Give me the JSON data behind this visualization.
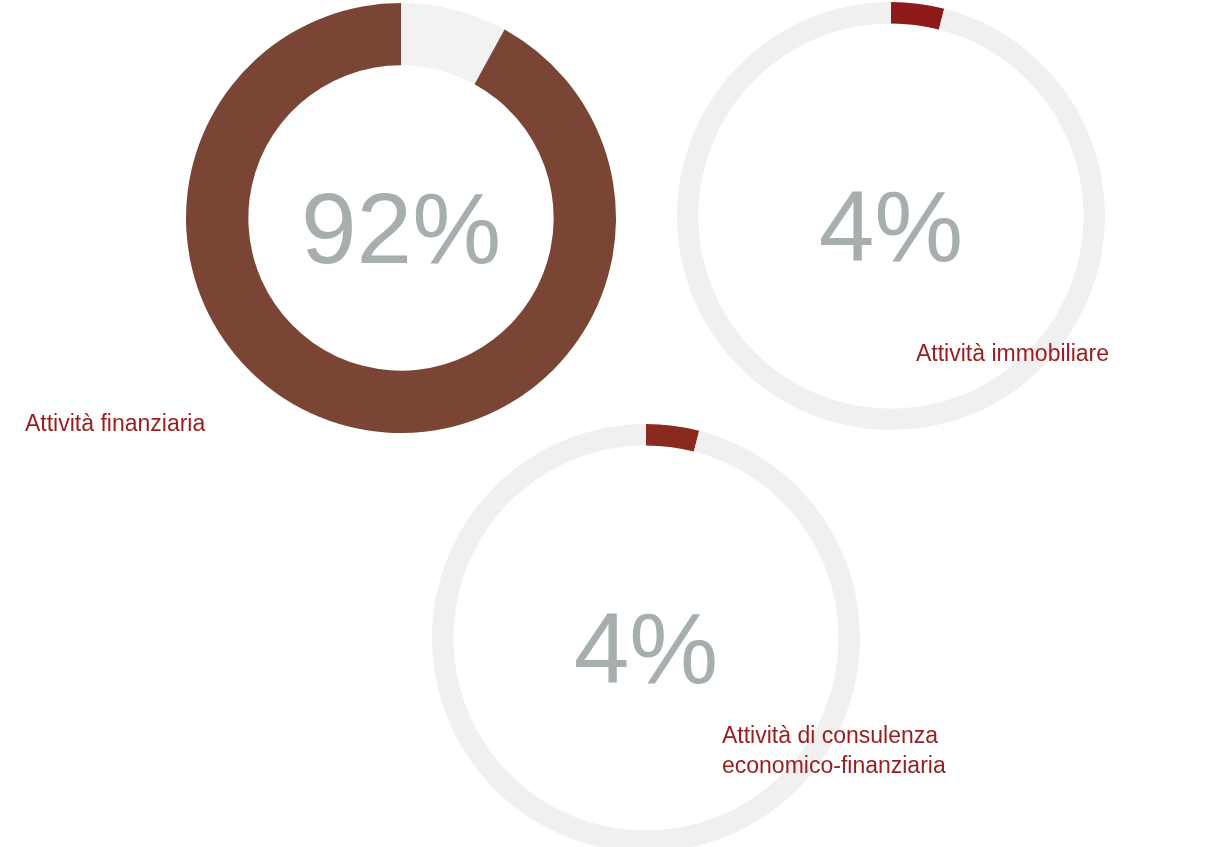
{
  "chart_data": [
    {
      "type": "donut",
      "title": "Attività finanziaria",
      "categories": [
        null,
        null
      ],
      "values": [
        8,
        92
      ],
      "colors": [
        "#f2f2f2",
        "#7a4535"
      ],
      "annotations": [
        "92%"
      ]
    },
    {
      "type": "donut",
      "title": "Attività immobiliare",
      "categories": [
        null,
        null
      ],
      "values": [
        4,
        96
      ],
      "colors": [
        "#8e1a1a",
        "#f0f0f0"
      ],
      "annotations": [
        "4%"
      ]
    },
    {
      "type": "donut",
      "title": "Attività di consulenza economico-finanziaria",
      "categories": [
        null,
        null
      ],
      "values": [
        4,
        96
      ],
      "colors": [
        "#8a2a1e",
        "#f0f0f0"
      ],
      "annotations": [
        "4%"
      ]
    }
  ]
}
